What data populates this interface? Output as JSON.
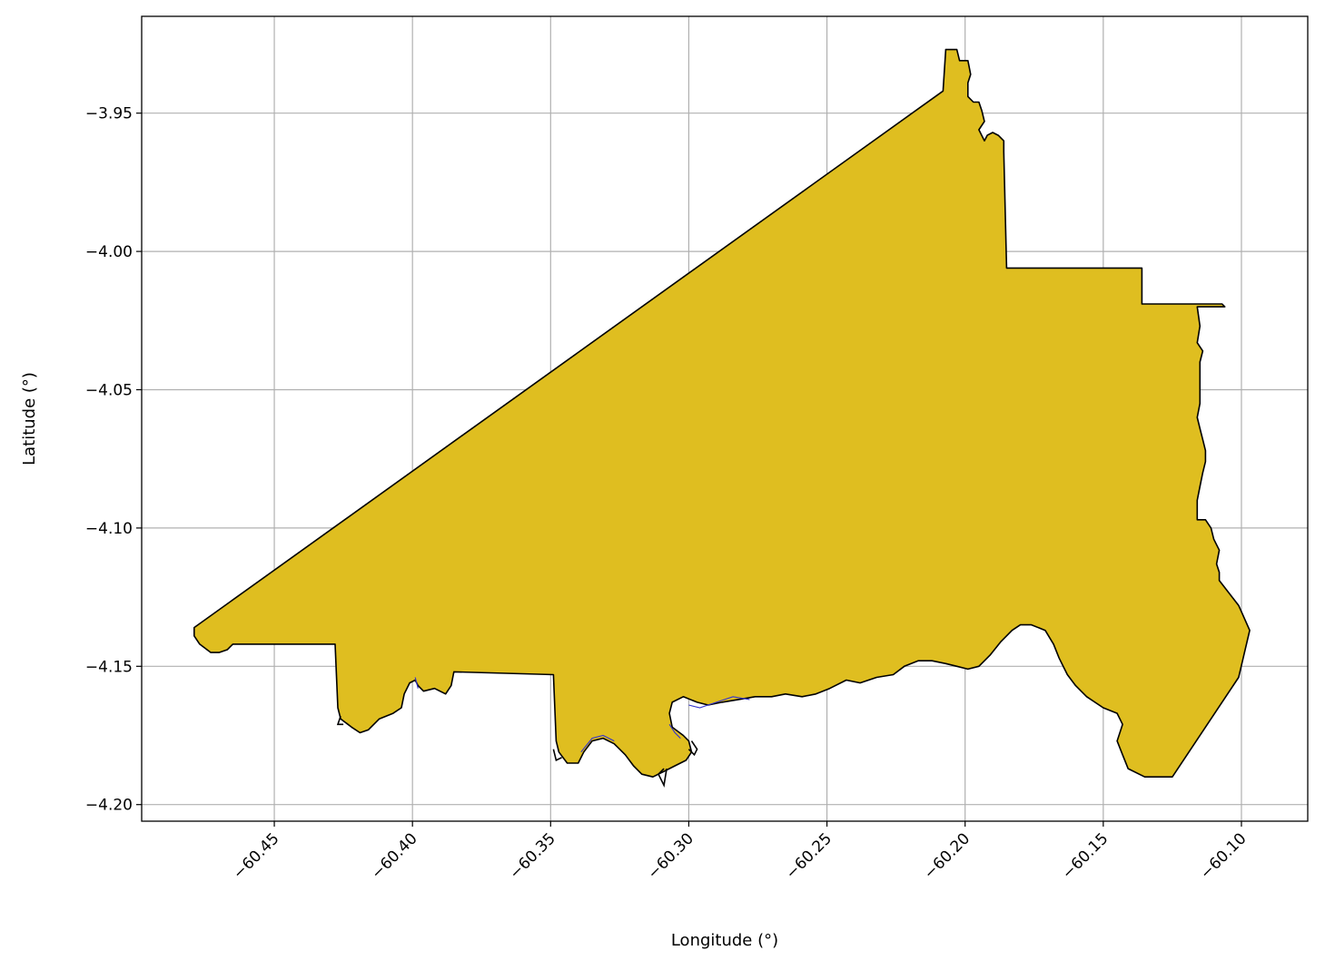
{
  "chart_data": {
    "type": "map",
    "xlabel": "Longitude (°)",
    "ylabel": "Latitude (°)",
    "xlim": [
      -60.498,
      -60.076
    ],
    "ylim": [
      -4.206,
      -3.915
    ],
    "x_ticks": [
      -60.45,
      -60.4,
      -60.35,
      -60.3,
      -60.25,
      -60.2,
      -60.15,
      -60.1
    ],
    "x_tick_labels": [
      "−60.45",
      "−60.40",
      "−60.35",
      "−60.30",
      "−60.25",
      "−60.20",
      "−60.15",
      "−60.10"
    ],
    "y_ticks": [
      -3.95,
      -4.0,
      -4.05,
      -4.1,
      -4.15,
      -4.2
    ],
    "y_tick_labels": [
      "−3.95",
      "−4.00",
      "−4.05",
      "−4.10",
      "−4.15",
      "−4.20"
    ],
    "grid": true,
    "fill_color": "#dfbe20",
    "edge_color": "#000000",
    "water_color": "#3333cc",
    "boundary": [
      [
        -60.479,
        -4.136
      ],
      [
        -60.208,
        -3.942
      ],
      [
        -60.207,
        -3.927
      ],
      [
        -60.203,
        -3.927
      ],
      [
        -60.202,
        -3.931
      ],
      [
        -60.199,
        -3.931
      ],
      [
        -60.198,
        -3.936
      ],
      [
        -60.199,
        -3.939
      ],
      [
        -60.199,
        -3.944
      ],
      [
        -60.197,
        -3.946
      ],
      [
        -60.195,
        -3.946
      ],
      [
        -60.194,
        -3.949
      ],
      [
        -60.193,
        -3.953
      ],
      [
        -60.195,
        -3.956
      ],
      [
        -60.193,
        -3.96
      ],
      [
        -60.192,
        -3.958
      ],
      [
        -60.19,
        -3.957
      ],
      [
        -60.188,
        -3.958
      ],
      [
        -60.186,
        -3.96
      ],
      [
        -60.186,
        -3.964
      ],
      [
        -60.185,
        -4.006
      ],
      [
        -60.136,
        -4.006
      ],
      [
        -60.136,
        -4.019
      ],
      [
        -60.107,
        -4.019
      ],
      [
        -60.106,
        -4.02
      ],
      [
        -60.116,
        -4.02
      ],
      [
        -60.115,
        -4.027
      ],
      [
        -60.116,
        -4.033
      ],
      [
        -60.114,
        -4.036
      ],
      [
        -60.115,
        -4.04
      ],
      [
        -60.115,
        -4.045
      ],
      [
        -60.115,
        -4.049
      ],
      [
        -60.115,
        -4.055
      ],
      [
        -60.116,
        -4.06
      ],
      [
        -60.115,
        -4.064
      ],
      [
        -60.114,
        -4.068
      ],
      [
        -60.113,
        -4.072
      ],
      [
        -60.113,
        -4.076
      ],
      [
        -60.114,
        -4.08
      ],
      [
        -60.115,
        -4.085
      ],
      [
        -60.116,
        -4.09
      ],
      [
        -60.116,
        -4.097
      ],
      [
        -60.113,
        -4.097
      ],
      [
        -60.111,
        -4.1
      ],
      [
        -60.11,
        -4.104
      ],
      [
        -60.108,
        -4.108
      ],
      [
        -60.109,
        -4.113
      ],
      [
        -60.108,
        -4.116
      ],
      [
        -60.108,
        -4.119
      ],
      [
        -60.101,
        -4.128
      ],
      [
        -60.097,
        -4.137
      ],
      [
        -60.101,
        -4.154
      ],
      [
        -60.125,
        -4.19
      ],
      [
        -60.135,
        -4.19
      ],
      [
        -60.141,
        -4.187
      ],
      [
        -60.143,
        -4.182
      ],
      [
        -60.145,
        -4.177
      ],
      [
        -60.144,
        -4.174
      ],
      [
        -60.143,
        -4.171
      ],
      [
        -60.145,
        -4.167
      ],
      [
        -60.15,
        -4.165
      ],
      [
        -60.156,
        -4.161
      ],
      [
        -60.16,
        -4.157
      ],
      [
        -60.163,
        -4.153
      ],
      [
        -60.166,
        -4.147
      ],
      [
        -60.168,
        -4.142
      ],
      [
        -60.171,
        -4.137
      ],
      [
        -60.176,
        -4.135
      ],
      [
        -60.18,
        -4.135
      ],
      [
        -60.183,
        -4.137
      ],
      [
        -60.187,
        -4.141
      ],
      [
        -60.191,
        -4.146
      ],
      [
        -60.195,
        -4.15
      ],
      [
        -60.199,
        -4.151
      ],
      [
        -60.203,
        -4.15
      ],
      [
        -60.207,
        -4.149
      ],
      [
        -60.212,
        -4.148
      ],
      [
        -60.217,
        -4.148
      ],
      [
        -60.222,
        -4.15
      ],
      [
        -60.226,
        -4.153
      ],
      [
        -60.232,
        -4.154
      ],
      [
        -60.238,
        -4.156
      ],
      [
        -60.243,
        -4.155
      ],
      [
        -60.249,
        -4.158
      ],
      [
        -60.254,
        -4.16
      ],
      [
        -60.259,
        -4.161
      ],
      [
        -60.265,
        -4.16
      ],
      [
        -60.27,
        -4.161
      ],
      [
        -60.276,
        -4.161
      ],
      [
        -60.282,
        -4.162
      ],
      [
        -60.288,
        -4.163
      ],
      [
        -60.293,
        -4.164
      ],
      [
        -60.297,
        -4.163
      ],
      [
        -60.302,
        -4.161
      ],
      [
        -60.306,
        -4.163
      ],
      [
        -60.307,
        -4.167
      ],
      [
        -60.306,
        -4.172
      ],
      [
        -60.302,
        -4.175
      ],
      [
        -60.3,
        -4.177
      ],
      [
        -60.299,
        -4.181
      ],
      [
        -60.301,
        -4.184
      ],
      [
        -60.305,
        -4.186
      ],
      [
        -60.309,
        -4.188
      ],
      [
        -60.313,
        -4.19
      ],
      [
        -60.317,
        -4.189
      ],
      [
        -60.32,
        -4.186
      ],
      [
        -60.323,
        -4.182
      ],
      [
        -60.327,
        -4.178
      ],
      [
        -60.331,
        -4.176
      ],
      [
        -60.335,
        -4.177
      ],
      [
        -60.338,
        -4.181
      ],
      [
        -60.34,
        -4.185
      ],
      [
        -60.344,
        -4.185
      ],
      [
        -60.347,
        -4.181
      ],
      [
        -60.348,
        -4.177
      ],
      [
        -60.349,
        -4.153
      ],
      [
        -60.385,
        -4.152
      ],
      [
        -60.386,
        -4.157
      ],
      [
        -60.388,
        -4.16
      ],
      [
        -60.392,
        -4.158
      ],
      [
        -60.396,
        -4.159
      ],
      [
        -60.398,
        -4.157
      ],
      [
        -60.399,
        -4.155
      ],
      [
        -60.401,
        -4.156
      ],
      [
        -60.403,
        -4.16
      ],
      [
        -60.404,
        -4.165
      ],
      [
        -60.407,
        -4.167
      ],
      [
        -60.412,
        -4.169
      ],
      [
        -60.416,
        -4.173
      ],
      [
        -60.419,
        -4.174
      ],
      [
        -60.422,
        -4.172
      ],
      [
        -60.426,
        -4.169
      ],
      [
        -60.427,
        -4.165
      ],
      [
        -60.428,
        -4.142
      ],
      [
        -60.465,
        -4.142
      ],
      [
        -60.467,
        -4.144
      ],
      [
        -60.47,
        -4.145
      ],
      [
        -60.473,
        -4.145
      ],
      [
        -60.477,
        -4.142
      ],
      [
        -60.479,
        -4.139
      ]
    ],
    "water_paths": [
      [
        [
          -60.3,
          -4.164
        ],
        [
          -60.296,
          -4.165
        ],
        [
          -60.29,
          -4.163
        ],
        [
          -60.284,
          -4.161
        ],
        [
          -60.278,
          -4.162
        ]
      ],
      [
        [
          -60.339,
          -4.181
        ],
        [
          -60.335,
          -4.176
        ],
        [
          -60.331,
          -4.175
        ],
        [
          -60.327,
          -4.177
        ]
      ],
      [
        [
          -60.398,
          -4.158
        ],
        [
          -60.399,
          -4.154
        ]
      ],
      [
        [
          -60.307,
          -4.171
        ],
        [
          -60.305,
          -4.174
        ],
        [
          -60.303,
          -4.176
        ]
      ]
    ],
    "islands": [
      [
        [
          -60.308,
          -4.187
        ],
        [
          -60.309,
          -4.193
        ],
        [
          -60.311,
          -4.189
        ],
        [
          -60.309,
          -4.187
        ]
      ],
      [
        [
          -60.349,
          -4.18
        ],
        [
          -60.348,
          -4.184
        ],
        [
          -60.346,
          -4.183
        ]
      ],
      [
        [
          -60.426,
          -4.168
        ],
        [
          -60.427,
          -4.171
        ],
        [
          -60.425,
          -4.171
        ]
      ],
      [
        [
          -60.299,
          -4.177
        ],
        [
          -60.297,
          -4.18
        ],
        [
          -60.298,
          -4.182
        ],
        [
          -60.3,
          -4.18
        ]
      ]
    ]
  }
}
